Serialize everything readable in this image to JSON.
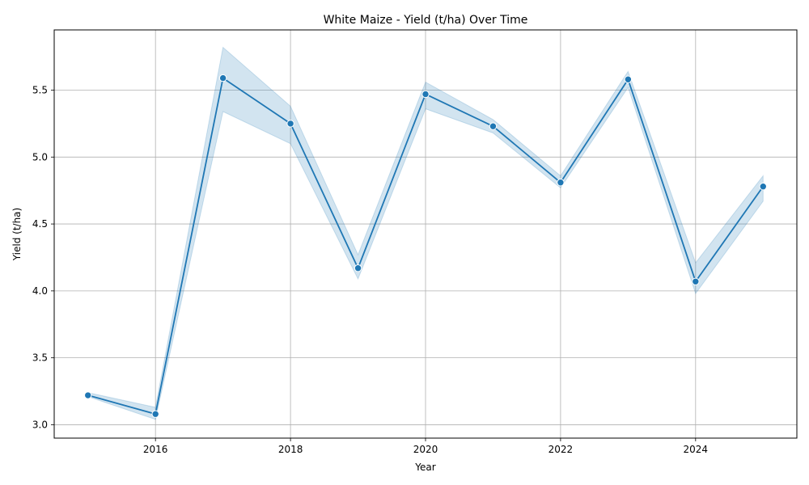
{
  "chart_data": {
    "type": "line",
    "title": "White Maize - Yield (t/ha) Over Time",
    "xlabel": "Year",
    "ylabel": "Yield (t/ha)",
    "xlim": [
      2014.5,
      2025.5
    ],
    "ylim": [
      2.9,
      5.95
    ],
    "x_ticks": [
      2016,
      2018,
      2020,
      2022,
      2024
    ],
    "y_ticks": [
      3.0,
      3.5,
      4.0,
      4.5,
      5.0,
      5.5
    ],
    "grid": true,
    "colors": {
      "line": "#1f77b4",
      "band": "#1f77b4"
    },
    "series": [
      {
        "x": [
          2015,
          2016,
          2017,
          2018,
          2019,
          2020,
          2021,
          2022,
          2023,
          2024,
          2025
        ],
        "values": [
          3.22,
          3.08,
          5.59,
          5.25,
          4.17,
          5.47,
          5.23,
          4.81,
          5.58,
          4.07,
          4.78
        ],
        "band_lower": [
          3.21,
          3.04,
          5.34,
          5.1,
          4.09,
          5.36,
          5.18,
          4.77,
          5.52,
          3.98,
          4.67
        ],
        "band_upper": [
          3.24,
          3.13,
          5.82,
          5.38,
          4.27,
          5.56,
          5.28,
          4.86,
          5.64,
          4.21,
          4.86
        ]
      }
    ]
  }
}
